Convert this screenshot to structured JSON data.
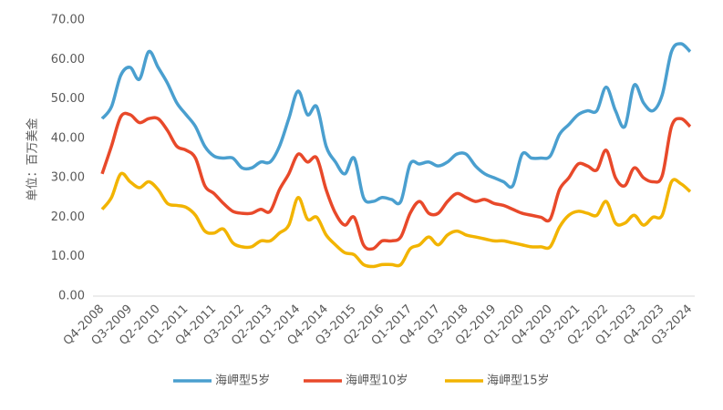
{
  "chart_data": {
    "type": "line",
    "y_label": "单位：百万美金",
    "categories": [
      "Q4-2008",
      null,
      null,
      "Q3-2009",
      null,
      null,
      "Q2-2010",
      null,
      null,
      "Q1-2011",
      null,
      null,
      "Q4-2011",
      null,
      null,
      "Q3-2012",
      null,
      null,
      "Q2-2013",
      null,
      null,
      "Q1-2014",
      null,
      null,
      "Q4-2014",
      null,
      null,
      "Q3-2015",
      null,
      null,
      "Q2-2016",
      null,
      null,
      "Q1-2017",
      null,
      null,
      "Q4-2017",
      null,
      null,
      "Q3-2018",
      null,
      null,
      "Q2-2019",
      null,
      null,
      "Q1-2020",
      null,
      null,
      "Q4-2020",
      null,
      null,
      "Q3-2021",
      null,
      null,
      "Q2-2022",
      null,
      null,
      "Q1-2023",
      null,
      null,
      "Q4-2023",
      null,
      null,
      "Q3-2024"
    ],
    "series": [
      {
        "name": "海岬型5岁",
        "color": "#4a9fcf",
        "values": [
          45,
          48,
          56,
          58,
          55,
          62,
          58,
          54,
          49,
          46,
          43,
          38,
          35.5,
          35,
          35,
          32.5,
          32.5,
          34,
          34,
          38,
          45,
          52,
          46,
          48,
          38,
          34,
          31,
          35,
          25,
          24,
          25,
          24.5,
          24,
          33.5,
          33.5,
          34,
          33,
          34,
          36,
          36,
          33,
          31,
          30,
          29,
          28,
          36,
          35,
          35,
          35.5,
          41,
          43.5,
          46,
          47,
          47,
          53,
          47,
          43,
          53.5,
          49,
          47,
          51,
          62,
          64,
          62
        ]
      },
      {
        "name": "海岬型10岁",
        "color": "#e8492a",
        "values": [
          31,
          38,
          45.5,
          46,
          44,
          45,
          45,
          42,
          38,
          37,
          35,
          28,
          26,
          23.5,
          21.5,
          21,
          21,
          22,
          21.5,
          27,
          31,
          36,
          34,
          35,
          27,
          21,
          18,
          20,
          13,
          12,
          14,
          14,
          15,
          21,
          24,
          21,
          21,
          24,
          26,
          25,
          24,
          24.5,
          23.5,
          23,
          22,
          21,
          20.5,
          20,
          19.5,
          27,
          30,
          33.5,
          33,
          32,
          37,
          30,
          28,
          32.5,
          30,
          29,
          30.5,
          43,
          45,
          43
        ]
      },
      {
        "name": "海岬型15岁",
        "color": "#f2b400",
        "values": [
          22,
          25,
          31,
          29,
          27.5,
          29,
          27,
          23.5,
          23,
          22.5,
          20.5,
          16.5,
          16,
          17,
          13.5,
          12.5,
          12.5,
          14,
          14,
          16,
          18,
          25,
          19.5,
          20,
          15.5,
          13,
          11,
          10.5,
          8,
          7.5,
          8,
          8,
          8,
          12,
          13,
          15,
          13,
          15.5,
          16.5,
          15.5,
          15,
          14.5,
          14,
          14,
          13.5,
          13,
          12.5,
          12.5,
          12.5,
          17.5,
          20.5,
          21.5,
          21,
          20.5,
          24,
          18.5,
          18.5,
          20.5,
          18,
          20,
          20.5,
          29,
          28.5,
          26.5
        ]
      }
    ],
    "ylim": [
      0,
      70
    ],
    "yticks": [
      {
        "value": 0,
        "label": "0.00"
      },
      {
        "value": 10,
        "label": "10.00"
      },
      {
        "value": 20,
        "label": "20.00"
      },
      {
        "value": 30,
        "label": "30.00"
      },
      {
        "value": 40,
        "label": "40.00"
      },
      {
        "value": 50,
        "label": "50.00"
      },
      {
        "value": 60,
        "label": "60.00"
      },
      {
        "value": 70,
        "label": "70.00"
      }
    ],
    "grid": false,
    "legend": "bottom"
  }
}
